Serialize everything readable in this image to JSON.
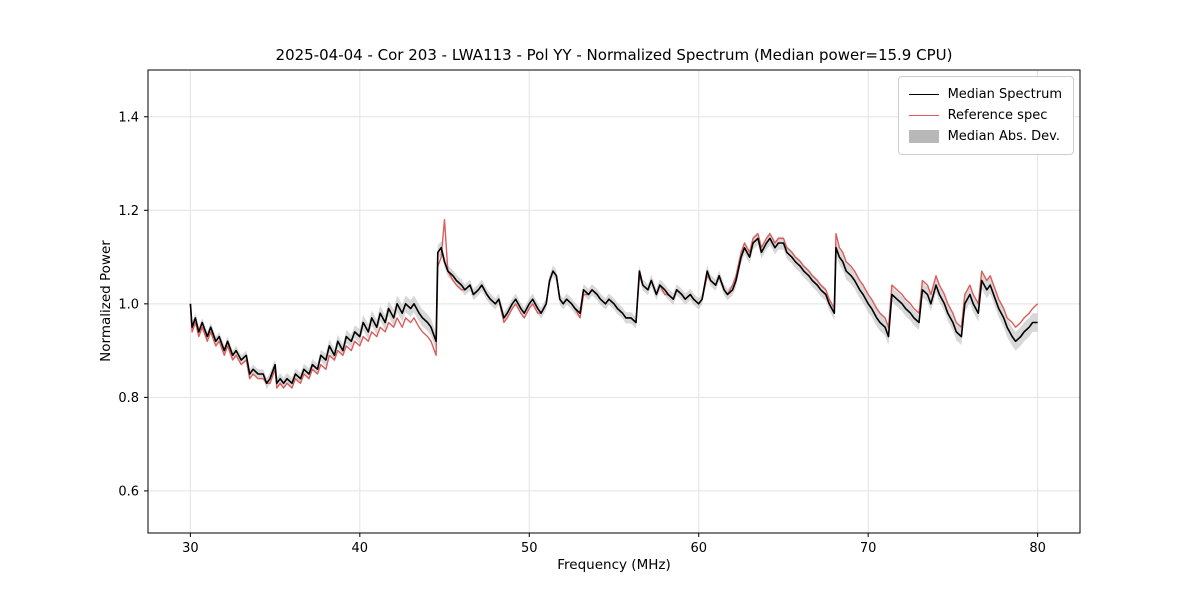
{
  "chart_data": {
    "type": "line",
    "title": "2025-04-04 - Cor 203 - LWA113 - Pol YY - Normalized Spectrum (Median power=15.9 CPU)",
    "xlabel": "Frequency (MHz)",
    "ylabel": "Normalized Power",
    "xlim": [
      27.5,
      82.5
    ],
    "ylim": [
      0.51,
      1.5
    ],
    "x_ticks": [
      30,
      40,
      50,
      60,
      70,
      80
    ],
    "y_ticks": [
      0.6,
      0.8,
      1.0,
      1.2,
      1.4
    ],
    "grid": true,
    "legend": {
      "position": "upper right",
      "entries": [
        "Median Spectrum",
        "Reference spec",
        "Median Abs. Dev."
      ]
    },
    "colors": {
      "median": "#000000",
      "reference": "#dc5c5c",
      "mad_band": "#b8b8b8",
      "grid": "#e3e3e3",
      "axis": "#000000"
    },
    "series_format": [
      "x_mhz",
      "median",
      "reference",
      "mad_halfwidth"
    ],
    "points": [
      [
        30.0,
        1.0,
        1.0,
        0.01
      ],
      [
        30.1,
        0.95,
        0.94,
        0.01
      ],
      [
        30.3,
        0.97,
        0.96,
        0.01
      ],
      [
        30.5,
        0.94,
        0.93,
        0.01
      ],
      [
        30.7,
        0.96,
        0.95,
        0.01
      ],
      [
        31.0,
        0.93,
        0.92,
        0.01
      ],
      [
        31.2,
        0.95,
        0.94,
        0.01
      ],
      [
        31.5,
        0.92,
        0.91,
        0.01
      ],
      [
        31.7,
        0.93,
        0.92,
        0.01
      ],
      [
        32.0,
        0.9,
        0.89,
        0.01
      ],
      [
        32.2,
        0.92,
        0.91,
        0.01
      ],
      [
        32.5,
        0.89,
        0.88,
        0.01
      ],
      [
        32.7,
        0.9,
        0.89,
        0.01
      ],
      [
        33.0,
        0.88,
        0.87,
        0.01
      ],
      [
        33.3,
        0.89,
        0.88,
        0.01
      ],
      [
        33.5,
        0.85,
        0.84,
        0.01
      ],
      [
        33.7,
        0.86,
        0.85,
        0.01
      ],
      [
        34.0,
        0.85,
        0.84,
        0.01
      ],
      [
        34.3,
        0.85,
        0.84,
        0.01
      ],
      [
        34.5,
        0.83,
        0.83,
        0.012
      ],
      [
        34.7,
        0.84,
        0.83,
        0.012
      ],
      [
        35.0,
        0.87,
        0.86,
        0.012
      ],
      [
        35.1,
        0.83,
        0.82,
        0.012
      ],
      [
        35.3,
        0.84,
        0.83,
        0.012
      ],
      [
        35.5,
        0.83,
        0.82,
        0.012
      ],
      [
        35.7,
        0.84,
        0.83,
        0.012
      ],
      [
        36.0,
        0.83,
        0.82,
        0.012
      ],
      [
        36.2,
        0.85,
        0.84,
        0.012
      ],
      [
        36.5,
        0.84,
        0.83,
        0.012
      ],
      [
        36.7,
        0.86,
        0.85,
        0.012
      ],
      [
        37.0,
        0.85,
        0.84,
        0.012
      ],
      [
        37.2,
        0.87,
        0.86,
        0.012
      ],
      [
        37.5,
        0.86,
        0.85,
        0.012
      ],
      [
        37.7,
        0.89,
        0.87,
        0.012
      ],
      [
        38.0,
        0.88,
        0.86,
        0.014
      ],
      [
        38.2,
        0.91,
        0.89,
        0.014
      ],
      [
        38.5,
        0.89,
        0.88,
        0.014
      ],
      [
        38.7,
        0.92,
        0.9,
        0.014
      ],
      [
        39.0,
        0.9,
        0.89,
        0.014
      ],
      [
        39.2,
        0.93,
        0.91,
        0.014
      ],
      [
        39.5,
        0.92,
        0.9,
        0.014
      ],
      [
        39.7,
        0.94,
        0.92,
        0.014
      ],
      [
        40.0,
        0.93,
        0.91,
        0.016
      ],
      [
        40.2,
        0.96,
        0.93,
        0.016
      ],
      [
        40.5,
        0.94,
        0.92,
        0.016
      ],
      [
        40.7,
        0.97,
        0.94,
        0.016
      ],
      [
        41.0,
        0.95,
        0.93,
        0.016
      ],
      [
        41.2,
        0.98,
        0.95,
        0.016
      ],
      [
        41.5,
        0.96,
        0.94,
        0.016
      ],
      [
        41.7,
        0.99,
        0.96,
        0.016
      ],
      [
        42.0,
        0.97,
        0.95,
        0.018
      ],
      [
        42.2,
        1.0,
        0.97,
        0.018
      ],
      [
        42.5,
        0.98,
        0.95,
        0.018
      ],
      [
        42.7,
        1.0,
        0.97,
        0.018
      ],
      [
        43.0,
        0.99,
        0.96,
        0.018
      ],
      [
        43.2,
        1.0,
        0.97,
        0.018
      ],
      [
        43.5,
        0.98,
        0.95,
        0.018
      ],
      [
        43.7,
        0.97,
        0.94,
        0.018
      ],
      [
        44.0,
        0.96,
        0.93,
        0.018
      ],
      [
        44.2,
        0.95,
        0.92,
        0.018
      ],
      [
        44.5,
        0.92,
        0.89,
        0.018
      ],
      [
        44.6,
        1.11,
        1.08,
        0.016
      ],
      [
        44.8,
        1.12,
        1.1,
        0.014
      ],
      [
        45.0,
        1.09,
        1.18,
        0.012
      ],
      [
        45.2,
        1.07,
        1.07,
        0.012
      ],
      [
        45.5,
        1.06,
        1.05,
        0.012
      ],
      [
        45.7,
        1.05,
        1.04,
        0.012
      ],
      [
        46.0,
        1.04,
        1.03,
        0.012
      ],
      [
        46.2,
        1.03,
        1.03,
        0.012
      ],
      [
        46.5,
        1.04,
        1.04,
        0.012
      ],
      [
        46.7,
        1.02,
        1.02,
        0.012
      ],
      [
        47.0,
        1.03,
        1.03,
        0.012
      ],
      [
        47.2,
        1.04,
        1.04,
        0.012
      ],
      [
        47.5,
        1.02,
        1.02,
        0.012
      ],
      [
        47.7,
        1.01,
        1.01,
        0.012
      ],
      [
        48.0,
        1.0,
        1.0,
        0.012
      ],
      [
        48.2,
        1.01,
        1.01,
        0.012
      ],
      [
        48.5,
        0.97,
        0.96,
        0.012
      ],
      [
        48.7,
        0.98,
        0.97,
        0.012
      ],
      [
        49.0,
        1.0,
        0.99,
        0.012
      ],
      [
        49.2,
        1.01,
        1.0,
        0.012
      ],
      [
        49.5,
        0.99,
        0.98,
        0.012
      ],
      [
        49.7,
        0.98,
        0.97,
        0.012
      ],
      [
        50.0,
        1.0,
        0.99,
        0.012
      ],
      [
        50.2,
        1.01,
        1.0,
        0.012
      ],
      [
        50.5,
        0.99,
        0.98,
        0.012
      ],
      [
        50.7,
        0.98,
        0.98,
        0.012
      ],
      [
        51.0,
        1.0,
        1.0,
        0.012
      ],
      [
        51.2,
        1.05,
        1.05,
        0.012
      ],
      [
        51.4,
        1.07,
        1.07,
        0.012
      ],
      [
        51.6,
        1.06,
        1.06,
        0.012
      ],
      [
        51.8,
        1.01,
        1.01,
        0.012
      ],
      [
        52.0,
        1.0,
        1.0,
        0.012
      ],
      [
        52.2,
        1.01,
        1.01,
        0.012
      ],
      [
        52.5,
        1.0,
        1.0,
        0.012
      ],
      [
        52.7,
        0.99,
        0.99,
        0.012
      ],
      [
        53.0,
        0.98,
        0.97,
        0.012
      ],
      [
        53.2,
        1.03,
        1.02,
        0.012
      ],
      [
        53.5,
        1.02,
        1.02,
        0.012
      ],
      [
        53.7,
        1.03,
        1.03,
        0.012
      ],
      [
        54.0,
        1.02,
        1.02,
        0.012
      ],
      [
        54.2,
        1.01,
        1.01,
        0.012
      ],
      [
        54.5,
        1.0,
        1.0,
        0.012
      ],
      [
        54.7,
        1.01,
        1.01,
        0.012
      ],
      [
        55.0,
        1.0,
        1.0,
        0.012
      ],
      [
        55.2,
        0.99,
        0.99,
        0.012
      ],
      [
        55.5,
        0.98,
        0.98,
        0.012
      ],
      [
        55.7,
        0.97,
        0.97,
        0.012
      ],
      [
        56.0,
        0.97,
        0.97,
        0.012
      ],
      [
        56.3,
        0.96,
        0.96,
        0.012
      ],
      [
        56.5,
        1.07,
        1.06,
        0.012
      ],
      [
        56.7,
        1.04,
        1.04,
        0.012
      ],
      [
        57.0,
        1.03,
        1.03,
        0.012
      ],
      [
        57.2,
        1.05,
        1.05,
        0.012
      ],
      [
        57.5,
        1.02,
        1.02,
        0.012
      ],
      [
        57.7,
        1.04,
        1.04,
        0.012
      ],
      [
        58.0,
        1.03,
        1.02,
        0.012
      ],
      [
        58.2,
        1.02,
        1.02,
        0.012
      ],
      [
        58.5,
        1.01,
        1.01,
        0.012
      ],
      [
        58.7,
        1.03,
        1.03,
        0.012
      ],
      [
        59.0,
        1.02,
        1.02,
        0.012
      ],
      [
        59.2,
        1.01,
        1.01,
        0.012
      ],
      [
        59.5,
        1.02,
        1.02,
        0.012
      ],
      [
        59.7,
        1.01,
        1.01,
        0.012
      ],
      [
        60.0,
        1.0,
        1.0,
        0.012
      ],
      [
        60.2,
        1.01,
        1.01,
        0.012
      ],
      [
        60.5,
        1.07,
        1.06,
        0.012
      ],
      [
        60.7,
        1.05,
        1.05,
        0.012
      ],
      [
        61.0,
        1.04,
        1.04,
        0.012
      ],
      [
        61.2,
        1.06,
        1.06,
        0.012
      ],
      [
        61.5,
        1.03,
        1.03,
        0.012
      ],
      [
        61.7,
        1.02,
        1.02,
        0.012
      ],
      [
        62.0,
        1.03,
        1.04,
        0.012
      ],
      [
        62.2,
        1.05,
        1.06,
        0.014
      ],
      [
        62.5,
        1.1,
        1.11,
        0.014
      ],
      [
        62.7,
        1.12,
        1.13,
        0.014
      ],
      [
        63.0,
        1.1,
        1.11,
        0.014
      ],
      [
        63.2,
        1.13,
        1.14,
        0.014
      ],
      [
        63.5,
        1.14,
        1.15,
        0.014
      ],
      [
        63.7,
        1.11,
        1.12,
        0.014
      ],
      [
        64.0,
        1.13,
        1.14,
        0.014
      ],
      [
        64.2,
        1.14,
        1.15,
        0.014
      ],
      [
        64.5,
        1.12,
        1.13,
        0.014
      ],
      [
        64.7,
        1.13,
        1.14,
        0.014
      ],
      [
        65.0,
        1.13,
        1.14,
        0.014
      ],
      [
        65.2,
        1.11,
        1.12,
        0.014
      ],
      [
        65.5,
        1.1,
        1.11,
        0.014
      ],
      [
        65.7,
        1.09,
        1.1,
        0.014
      ],
      [
        66.0,
        1.08,
        1.09,
        0.014
      ],
      [
        66.2,
        1.07,
        1.08,
        0.014
      ],
      [
        66.5,
        1.06,
        1.07,
        0.014
      ],
      [
        66.7,
        1.05,
        1.06,
        0.014
      ],
      [
        67.0,
        1.04,
        1.05,
        0.014
      ],
      [
        67.2,
        1.03,
        1.04,
        0.014
      ],
      [
        67.5,
        1.02,
        1.03,
        0.014
      ],
      [
        67.7,
        1.0,
        1.01,
        0.014
      ],
      [
        68.0,
        0.98,
        0.99,
        0.014
      ],
      [
        68.1,
        1.12,
        1.15,
        0.016
      ],
      [
        68.3,
        1.1,
        1.12,
        0.016
      ],
      [
        68.5,
        1.09,
        1.11,
        0.018
      ],
      [
        68.7,
        1.07,
        1.09,
        0.018
      ],
      [
        69.0,
        1.06,
        1.08,
        0.018
      ],
      [
        69.2,
        1.05,
        1.07,
        0.018
      ],
      [
        69.5,
        1.03,
        1.05,
        0.018
      ],
      [
        69.7,
        1.02,
        1.04,
        0.018
      ],
      [
        70.0,
        1.0,
        1.02,
        0.018
      ],
      [
        70.2,
        0.99,
        1.01,
        0.018
      ],
      [
        70.5,
        0.97,
        0.99,
        0.018
      ],
      [
        70.7,
        0.96,
        0.98,
        0.018
      ],
      [
        71.0,
        0.95,
        0.97,
        0.018
      ],
      [
        71.2,
        0.93,
        0.95,
        0.018
      ],
      [
        71.4,
        1.02,
        1.04,
        0.016
      ],
      [
        71.7,
        1.01,
        1.03,
        0.016
      ],
      [
        72.0,
        1.0,
        1.02,
        0.016
      ],
      [
        72.2,
        0.99,
        1.01,
        0.016
      ],
      [
        72.5,
        0.98,
        1.0,
        0.016
      ],
      [
        72.7,
        0.97,
        0.99,
        0.016
      ],
      [
        73.0,
        0.96,
        0.98,
        0.016
      ],
      [
        73.2,
        1.03,
        1.05,
        0.016
      ],
      [
        73.5,
        1.02,
        1.04,
        0.016
      ],
      [
        73.7,
        1.0,
        1.02,
        0.016
      ],
      [
        74.0,
        1.04,
        1.06,
        0.016
      ],
      [
        74.2,
        1.02,
        1.04,
        0.016
      ],
      [
        74.5,
        1.0,
        1.02,
        0.016
      ],
      [
        74.7,
        0.98,
        1.0,
        0.016
      ],
      [
        75.0,
        0.96,
        0.98,
        0.018
      ],
      [
        75.2,
        0.94,
        0.96,
        0.018
      ],
      [
        75.5,
        0.93,
        0.95,
        0.018
      ],
      [
        75.7,
        1.0,
        1.02,
        0.018
      ],
      [
        76.0,
        1.02,
        1.04,
        0.018
      ],
      [
        76.2,
        1.0,
        1.02,
        0.018
      ],
      [
        76.5,
        0.98,
        1.0,
        0.018
      ],
      [
        76.7,
        1.05,
        1.07,
        0.018
      ],
      [
        77.0,
        1.03,
        1.05,
        0.018
      ],
      [
        77.2,
        1.04,
        1.06,
        0.018
      ],
      [
        77.5,
        1.01,
        1.03,
        0.018
      ],
      [
        77.7,
        0.99,
        1.01,
        0.018
      ],
      [
        78.0,
        0.97,
        0.99,
        0.02
      ],
      [
        78.2,
        0.95,
        0.97,
        0.02
      ],
      [
        78.5,
        0.93,
        0.96,
        0.02
      ],
      [
        78.7,
        0.92,
        0.95,
        0.02
      ],
      [
        79.0,
        0.93,
        0.96,
        0.02
      ],
      [
        79.2,
        0.94,
        0.97,
        0.02
      ],
      [
        79.5,
        0.95,
        0.98,
        0.02
      ],
      [
        79.7,
        0.96,
        0.99,
        0.02
      ],
      [
        80.0,
        0.96,
        1.0,
        0.02
      ]
    ]
  }
}
